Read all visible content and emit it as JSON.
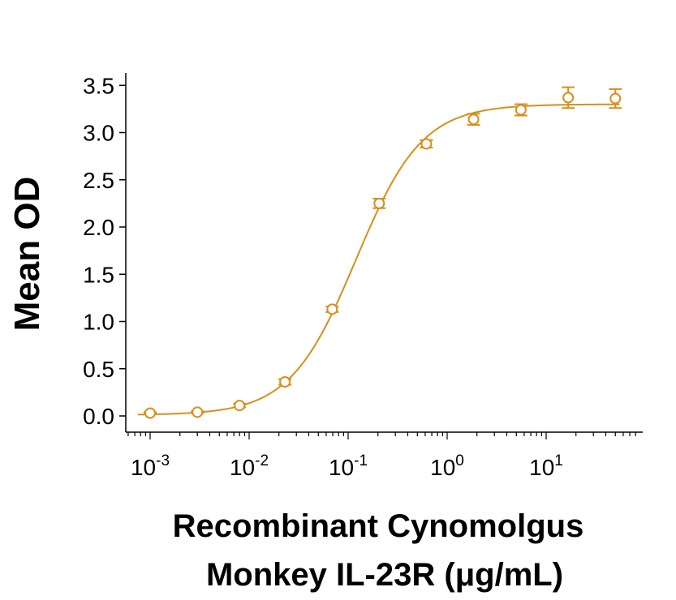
{
  "chart_data": {
    "type": "scatter",
    "title": "",
    "xlabel_line1": "Recombinant Cynomolgus",
    "xlabel_line2": "Monkey IL-23R (μg/mL)",
    "ylabel": "Mean OD",
    "xscale": "log",
    "xlim": [
      0.0006,
      80
    ],
    "ylim": [
      -0.15,
      3.6
    ],
    "yticks": [
      "0.0",
      "0.5",
      "1.0",
      "1.5",
      "2.0",
      "2.5",
      "3.0",
      "3.5"
    ],
    "xticks": [
      {
        "base": "10",
        "exp": "-3",
        "value": 0.001
      },
      {
        "base": "10",
        "exp": "-2",
        "value": 0.01
      },
      {
        "base": "10",
        "exp": "-1",
        "value": 0.1
      },
      {
        "base": "10",
        "exp": "0",
        "value": 1
      },
      {
        "base": "10",
        "exp": "1",
        "value": 10
      }
    ],
    "grid": false,
    "color": "#D98E1A",
    "series": [
      {
        "x": [
          0.001,
          0.003,
          0.008,
          0.023,
          0.069,
          0.206,
          0.617,
          1.85,
          5.56,
          16.7,
          50
        ],
        "y": [
          0.03,
          0.04,
          0.11,
          0.36,
          1.13,
          2.25,
          2.88,
          3.14,
          3.24,
          3.37,
          3.36
        ],
        "err": [
          0.01,
          0.01,
          0.02,
          0.03,
          0.03,
          0.05,
          0.04,
          0.06,
          0.06,
          0.11,
          0.1
        ],
        "fit": {
          "bottom": 0.01,
          "top": 3.3,
          "ec50": 0.12,
          "hill": 1.3
        }
      }
    ]
  }
}
